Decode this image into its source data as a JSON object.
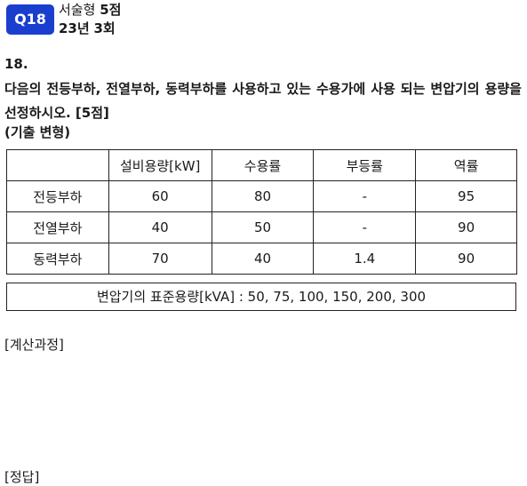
{
  "badge": "Q18",
  "meta": {
    "type_label": "서술형",
    "points": "5점",
    "year": "23년",
    "round": "3회"
  },
  "question": {
    "number": "18.",
    "text": "다음의 전등부하, 전열부하, 동력부하를 사용하고 있는 수용가에 사용 되는 변압기의 용량을 선정하시오. [5점]",
    "source": "(기출 변형)"
  },
  "table": {
    "headers": [
      "",
      "설비용량[kW]",
      "수용률",
      "부등률",
      "역률"
    ],
    "rows": [
      [
        "전등부하",
        "60",
        "80",
        "-",
        "95"
      ],
      [
        "전열부하",
        "40",
        "50",
        "-",
        "90"
      ],
      [
        "동력부하",
        "70",
        "40",
        "1.4",
        "90"
      ]
    ]
  },
  "standard_capacity": "변압기의 표준용량[kVA] : 50, 75, 100, 150, 200, 300",
  "sections": {
    "calc": "[계산과정]",
    "answer": "[정답]"
  }
}
